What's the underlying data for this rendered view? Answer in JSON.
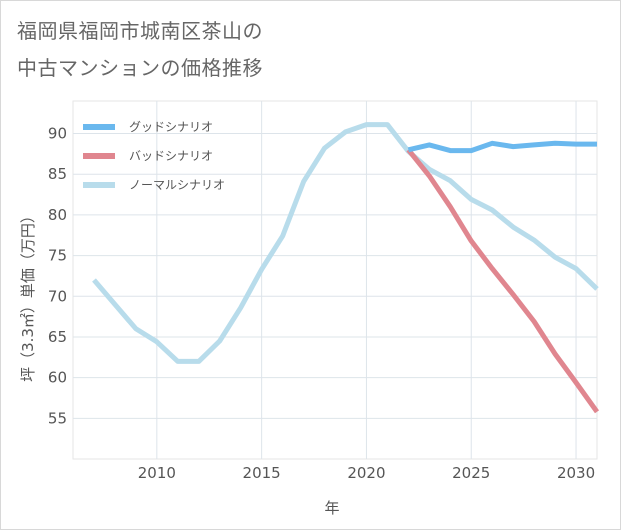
{
  "title_lines": [
    "福岡県福岡市城南区茶山の",
    "中古マンションの価格推移"
  ],
  "chart_data": {
    "type": "line",
    "title": "福岡県福岡市城南区茶山の中古マンションの価格推移",
    "xlabel": "年",
    "ylabel": "坪（3.3㎡）単価（万円）",
    "xlim": [
      2006,
      2031
    ],
    "ylim": [
      50,
      94
    ],
    "xticks": [
      2010,
      2015,
      2020,
      2025,
      2030
    ],
    "yticks": [
      55,
      60,
      65,
      70,
      75,
      80,
      85,
      90
    ],
    "grid": true,
    "legend_position": "top-left",
    "series": [
      {
        "name": "グッドシナリオ",
        "color": "#6ab8ee",
        "x": [
          2022,
          2023,
          2024,
          2025,
          2026,
          2027,
          2028,
          2029,
          2030,
          2031
        ],
        "y": [
          88.0,
          88.6,
          87.9,
          87.9,
          88.8,
          88.4,
          88.6,
          88.8,
          88.7,
          88.7
        ]
      },
      {
        "name": "バッドシナリオ",
        "color": "#e0868f",
        "x": [
          2022,
          2023,
          2024,
          2025,
          2026,
          2027,
          2028,
          2029,
          2030,
          2031
        ],
        "y": [
          88.0,
          84.8,
          81.0,
          76.8,
          73.4,
          70.2,
          66.9,
          62.9,
          59.4,
          55.8
        ]
      },
      {
        "name": "ノーマルシナリオ",
        "color": "#b8dceb",
        "x": [
          2007,
          2008,
          2009,
          2010,
          2011,
          2012,
          2013,
          2014,
          2015,
          2016,
          2017,
          2018,
          2019,
          2020,
          2021,
          2022,
          2023,
          2024,
          2025,
          2026,
          2027,
          2028,
          2029,
          2030,
          2031
        ],
        "y": [
          72.0,
          69.0,
          66.0,
          64.4,
          62.0,
          62.0,
          64.5,
          68.6,
          73.3,
          77.4,
          84.1,
          88.2,
          90.2,
          91.1,
          91.1,
          87.8,
          85.6,
          84.2,
          81.9,
          80.6,
          78.5,
          76.9,
          74.8,
          73.4,
          70.9
        ]
      }
    ]
  }
}
